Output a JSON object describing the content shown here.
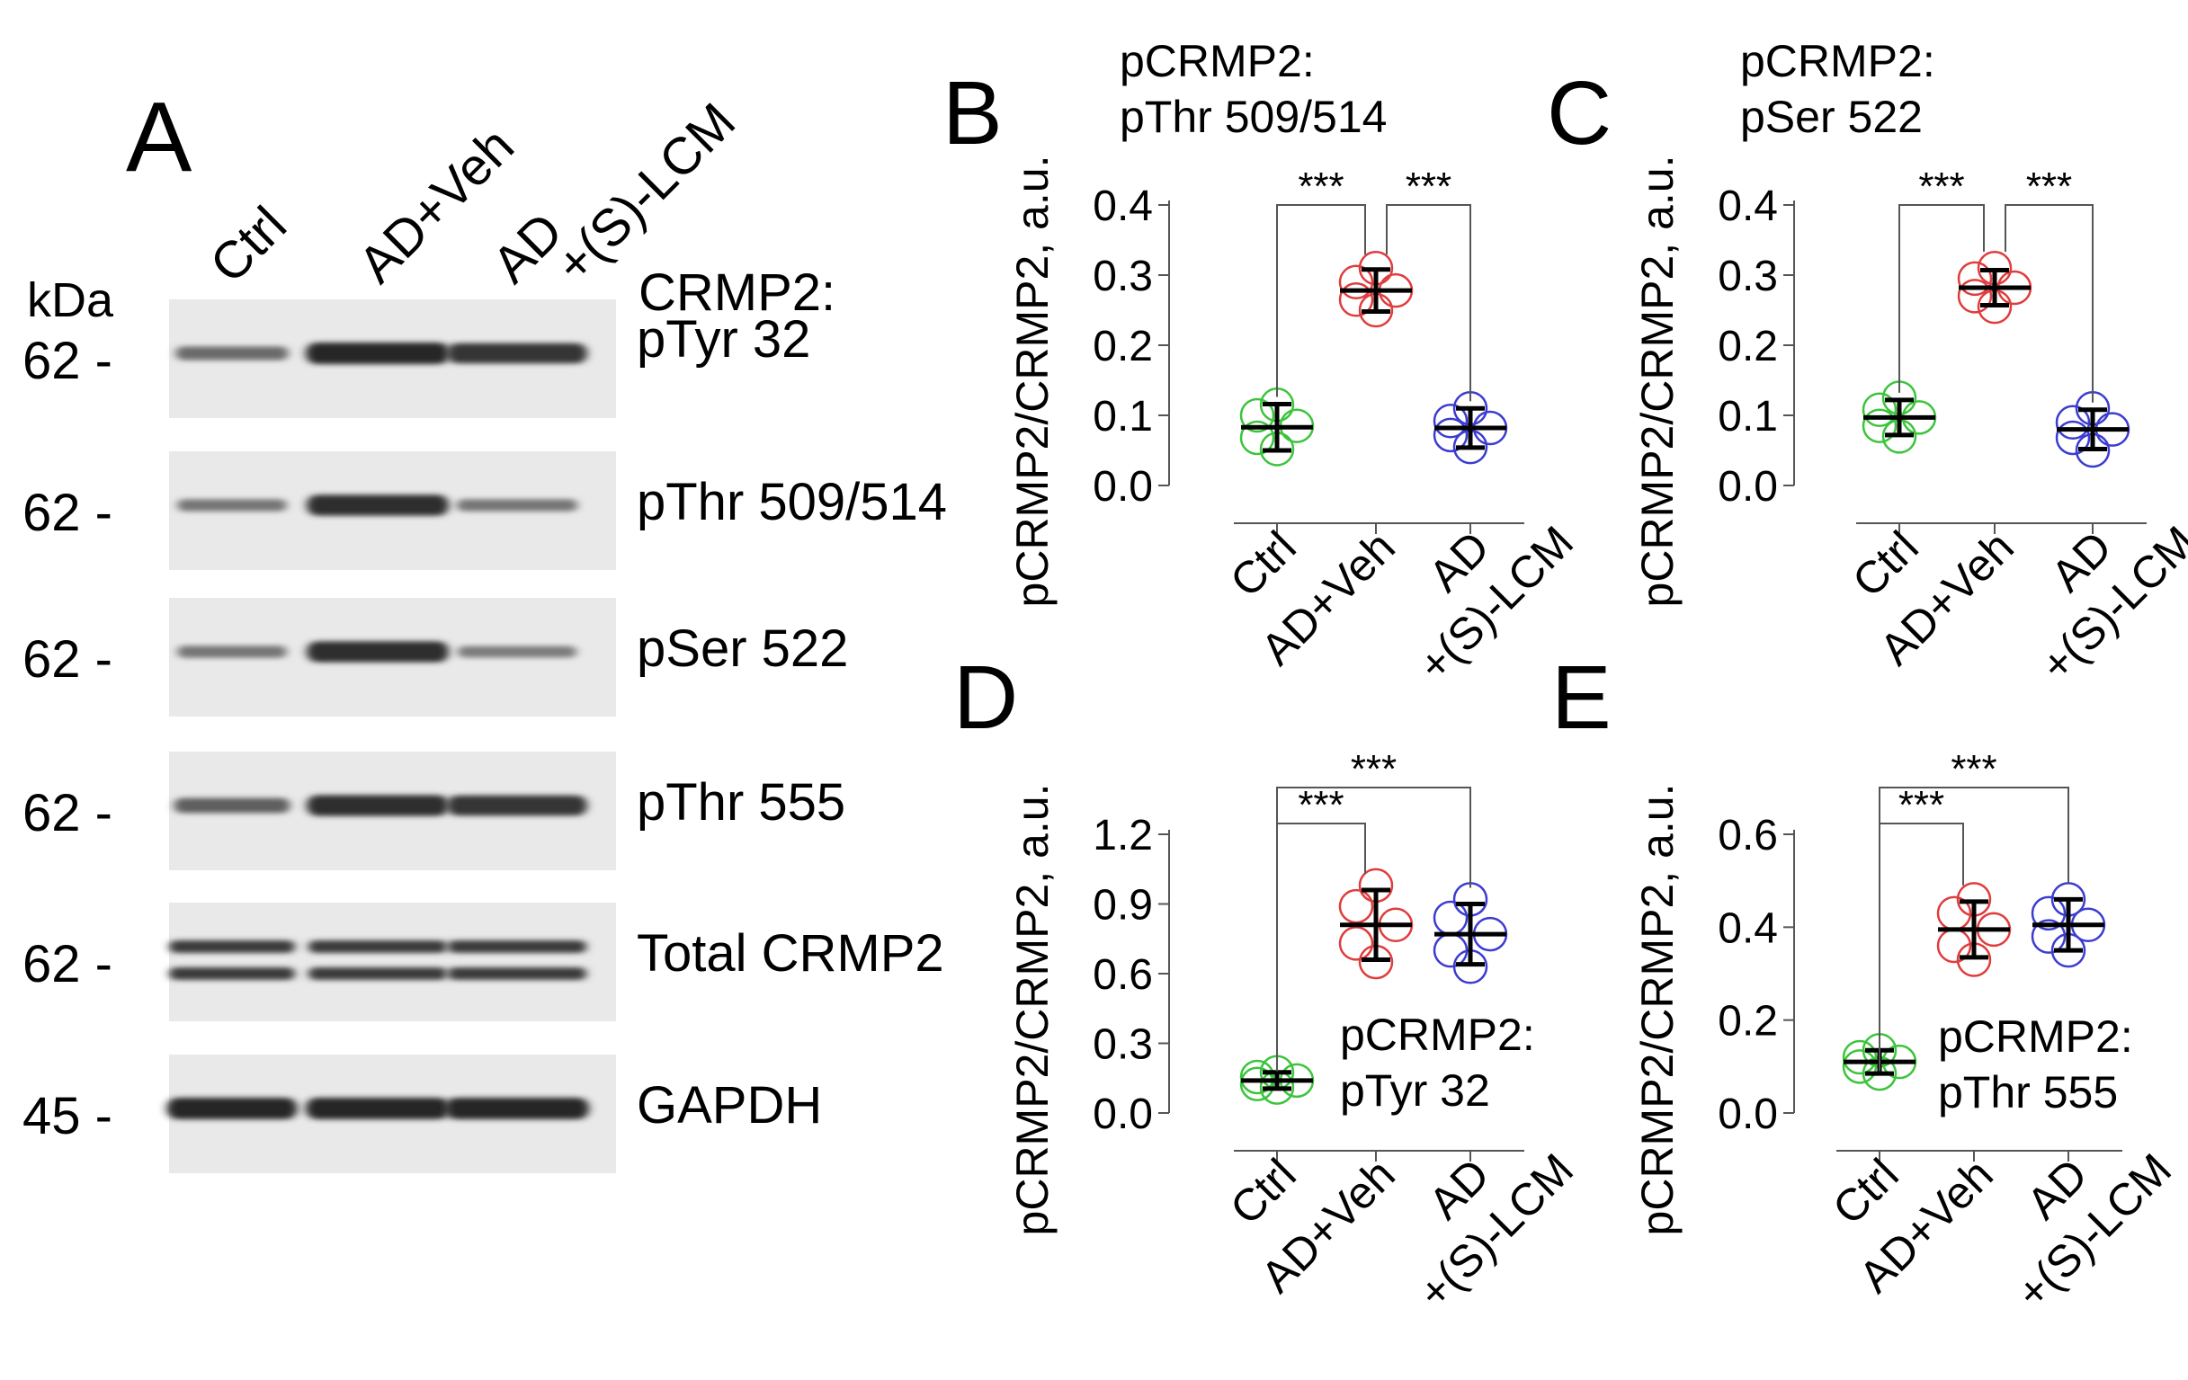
{
  "panelA": {
    "letter": "A",
    "kda_label": "kDa",
    "crmp_header": "CRMP2:",
    "lanes": [
      "Ctrl",
      "AD+Veh",
      "AD",
      "+(S)-LCM"
    ],
    "blots": [
      {
        "label": "pTyr 32",
        "kda": "62 -",
        "intensity": [
          0.45,
          1.0,
          0.9
        ],
        "double": false
      },
      {
        "label": "pThr 509/514",
        "kda": "62 -",
        "intensity": [
          0.35,
          0.95,
          0.35
        ],
        "double": false
      },
      {
        "label": "pSer 522",
        "kda": "62 -",
        "intensity": [
          0.35,
          0.95,
          0.3
        ],
        "double": false
      },
      {
        "label": "pThr 555",
        "kda": "62 -",
        "intensity": [
          0.55,
          0.95,
          0.9
        ],
        "double": false
      },
      {
        "label": "Total CRMP2",
        "kda": "62 -",
        "intensity": [
          0.85,
          0.85,
          0.85
        ],
        "double": true
      },
      {
        "label": "GAPDH",
        "kda": "45 -",
        "intensity": [
          1.0,
          1.0,
          1.0
        ],
        "double": false
      }
    ]
  },
  "colors": {
    "ctrl": "#3cc43c",
    "veh": "#e03c3c",
    "lcm": "#3c3cd0",
    "axis": "#555555",
    "black": "#000000"
  },
  "chart_data": [
    {
      "panel": "B",
      "type": "scatter",
      "title_lines": [
        "pCRMP2:",
        "pThr 509/514"
      ],
      "ylabel": "pCRMP2/CRMP2, a.u.",
      "ylim": [
        0.0,
        0.4
      ],
      "yticks": [
        "0.0",
        "0.1",
        "0.2",
        "0.3",
        "0.4"
      ],
      "categories": [
        "Ctrl",
        "AD+Veh",
        "AD\n+(S)-LCM"
      ],
      "groups": [
        {
          "mean": 0.083,
          "err": 0.033,
          "points": [
            0.115,
            0.1,
            0.085,
            0.068,
            0.052
          ]
        },
        {
          "mean": 0.278,
          "err": 0.03,
          "points": [
            0.31,
            0.29,
            0.278,
            0.265,
            0.25
          ]
        },
        {
          "mean": 0.082,
          "err": 0.028,
          "points": [
            0.11,
            0.092,
            0.082,
            0.072,
            0.055
          ]
        }
      ],
      "significance": [
        {
          "from": 0,
          "to": 1,
          "label": "***"
        },
        {
          "from": 1,
          "to": 2,
          "label": "***"
        }
      ]
    },
    {
      "panel": "C",
      "type": "scatter",
      "title_lines": [
        "pCRMP2:",
        "pSer 522"
      ],
      "ylabel": "pCRMP2/CRMP2, a.u.",
      "ylim": [
        0.0,
        0.4
      ],
      "yticks": [
        "0.0",
        "0.1",
        "0.2",
        "0.3",
        "0.4"
      ],
      "categories": [
        "Ctrl",
        "AD+Veh",
        "AD\n+(S)-LCM"
      ],
      "groups": [
        {
          "mean": 0.097,
          "err": 0.025,
          "points": [
            0.125,
            0.108,
            0.097,
            0.085,
            0.07
          ]
        },
        {
          "mean": 0.282,
          "err": 0.025,
          "points": [
            0.31,
            0.295,
            0.282,
            0.27,
            0.255
          ]
        },
        {
          "mean": 0.08,
          "err": 0.028,
          "points": [
            0.11,
            0.09,
            0.08,
            0.068,
            0.05
          ]
        }
      ],
      "significance": [
        {
          "from": 0,
          "to": 1,
          "label": "***"
        },
        {
          "from": 1,
          "to": 2,
          "label": "***"
        }
      ]
    },
    {
      "panel": "D",
      "type": "scatter",
      "title_lines": [
        "pCRMP2:",
        "pTyr 32"
      ],
      "ylabel": "pCRMP2/CRMP2, a.u.",
      "ylim": [
        0.0,
        1.2
      ],
      "yticks": [
        "0.0",
        "0.3",
        "0.6",
        "0.9",
        "1.2"
      ],
      "categories": [
        "Ctrl",
        "AD+Veh",
        "AD\n+(S)-LCM"
      ],
      "groups": [
        {
          "mean": 0.14,
          "err": 0.035,
          "points": [
            0.175,
            0.155,
            0.14,
            0.125,
            0.11
          ]
        },
        {
          "mean": 0.81,
          "err": 0.15,
          "points": [
            0.98,
            0.89,
            0.81,
            0.73,
            0.65
          ]
        },
        {
          "mean": 0.77,
          "err": 0.13,
          "points": [
            0.92,
            0.84,
            0.77,
            0.7,
            0.63
          ]
        }
      ],
      "significance": [
        {
          "from": 0,
          "to": 1,
          "label": "***"
        },
        {
          "from": 0,
          "to": 2,
          "label": "***"
        }
      ]
    },
    {
      "panel": "E",
      "type": "scatter",
      "title_lines": [
        "pCRMP2:",
        "pThr 555"
      ],
      "ylabel": "pCRMP2/CRMP2, a.u.",
      "ylim": [
        0.0,
        0.6
      ],
      "yticks": [
        "0.0",
        "0.2",
        "0.4",
        "0.6"
      ],
      "categories": [
        "Ctrl",
        "AD+Veh",
        "AD\n+(S)-LCM"
      ],
      "groups": [
        {
          "mean": 0.11,
          "err": 0.025,
          "points": [
            0.135,
            0.12,
            0.11,
            0.1,
            0.085
          ]
        },
        {
          "mean": 0.395,
          "err": 0.06,
          "points": [
            0.46,
            0.43,
            0.395,
            0.36,
            0.33
          ]
        },
        {
          "mean": 0.405,
          "err": 0.055,
          "points": [
            0.46,
            0.43,
            0.405,
            0.38,
            0.35
          ]
        }
      ],
      "significance": [
        {
          "from": 0,
          "to": 1,
          "label": "***"
        },
        {
          "from": 0,
          "to": 2,
          "label": "***"
        }
      ]
    }
  ]
}
